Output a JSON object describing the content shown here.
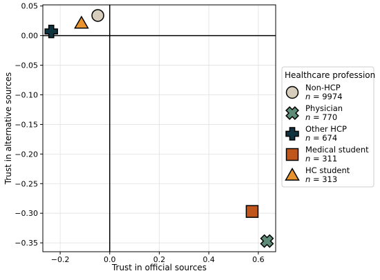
{
  "chart_data": {
    "type": "scatter",
    "xlabel": "Trust in official sources",
    "ylabel": "Trust in alternative sources",
    "xlim": [
      -0.27,
      0.67
    ],
    "ylim": [
      -0.365,
      0.052
    ],
    "xticks": [
      -0.2,
      0.0,
      0.2,
      0.4,
      0.6
    ],
    "xtick_labels": [
      "−0.2",
      "0.0",
      "0.2",
      "0.4",
      "0.6"
    ],
    "yticks": [
      0.05,
      0.0,
      -0.05,
      -0.1,
      -0.15,
      -0.2,
      -0.25,
      -0.3,
      -0.35
    ],
    "ytick_labels": [
      "0.05",
      "0.00",
      "−0.05",
      "−0.10",
      "−0.15",
      "−0.20",
      "−0.25",
      "−0.30",
      "−0.35"
    ],
    "grid": true,
    "reference_lines": {
      "x": 0,
      "y": 0
    },
    "legend": {
      "title": "Healthcare profession",
      "placement": "right",
      "n_prefix": "n",
      "n_separator": "="
    },
    "series": [
      {
        "name": "Non-HCP",
        "n": "9974",
        "marker": "circle",
        "color": "#d6cdbd",
        "x": -0.048,
        "y": 0.034
      },
      {
        "name": "Physician",
        "n": "770",
        "marker": "x",
        "color": "#5e8c78",
        "x": 0.635,
        "y": -0.347
      },
      {
        "name": "Other HCP",
        "n": "674",
        "marker": "plus",
        "color": "#0f3440",
        "x": -0.236,
        "y": 0.007
      },
      {
        "name": "Medical student",
        "n": "311",
        "marker": "square",
        "color": "#c0561c",
        "x": 0.575,
        "y": -0.297
      },
      {
        "name": "HC student",
        "n": "313",
        "marker": "triangle",
        "color": "#e8932e",
        "x": -0.114,
        "y": 0.021
      }
    ]
  }
}
